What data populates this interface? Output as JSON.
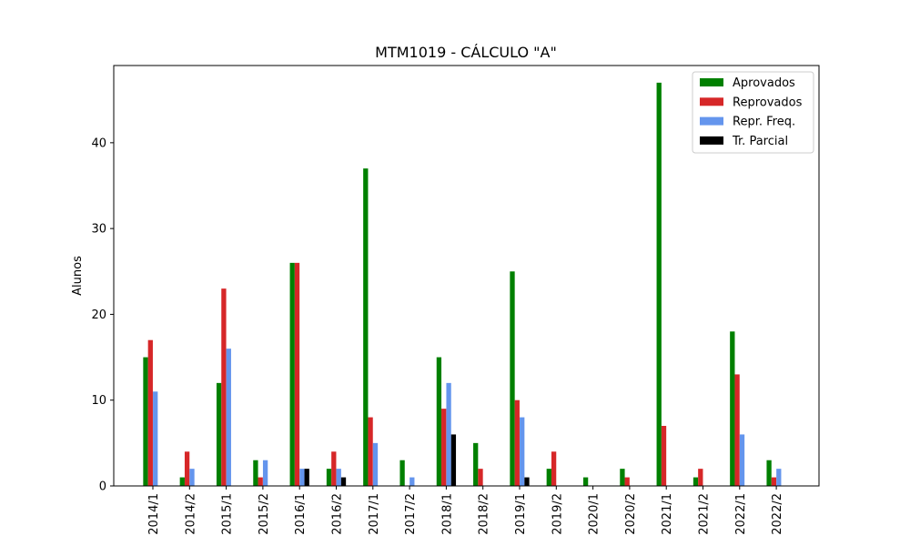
{
  "chart_data": {
    "type": "bar",
    "title": "MTM1019 - CÁLCULO \"A\"",
    "xlabel": "",
    "ylabel": "Alunos",
    "ylim": [
      0,
      49
    ],
    "yticks": [
      0,
      10,
      20,
      30,
      40
    ],
    "grid": false,
    "legend_position": "top-right",
    "categories": [
      "2014/1",
      "2014/2",
      "2015/1",
      "2015/2",
      "2016/1",
      "2016/2",
      "2017/1",
      "2017/2",
      "2018/1",
      "2018/2",
      "2019/1",
      "2019/2",
      "2020/1",
      "2020/2",
      "2021/1",
      "2021/2",
      "2022/1",
      "2022/2"
    ],
    "series": [
      {
        "name": "Aprovados",
        "color": "#008000",
        "values": [
          15,
          1,
          12,
          3,
          26,
          2,
          37,
          3,
          15,
          5,
          25,
          2,
          1,
          2,
          47,
          1,
          18,
          3
        ]
      },
      {
        "name": "Reprovados",
        "color": "#d62728",
        "values": [
          17,
          4,
          23,
          1,
          26,
          4,
          8,
          0,
          9,
          2,
          10,
          4,
          0,
          1,
          7,
          2,
          13,
          1
        ]
      },
      {
        "name": "Repr. Freq.",
        "color": "#6495ed",
        "values": [
          11,
          2,
          16,
          3,
          2,
          2,
          5,
          1,
          12,
          0,
          8,
          0,
          0,
          0,
          0,
          0,
          6,
          2
        ]
      },
      {
        "name": "Tr. Parcial",
        "color": "#000000",
        "values": [
          0,
          0,
          0,
          0,
          2,
          1,
          0,
          0,
          6,
          0,
          1,
          0,
          0,
          0,
          0,
          0,
          0,
          0
        ]
      }
    ]
  }
}
